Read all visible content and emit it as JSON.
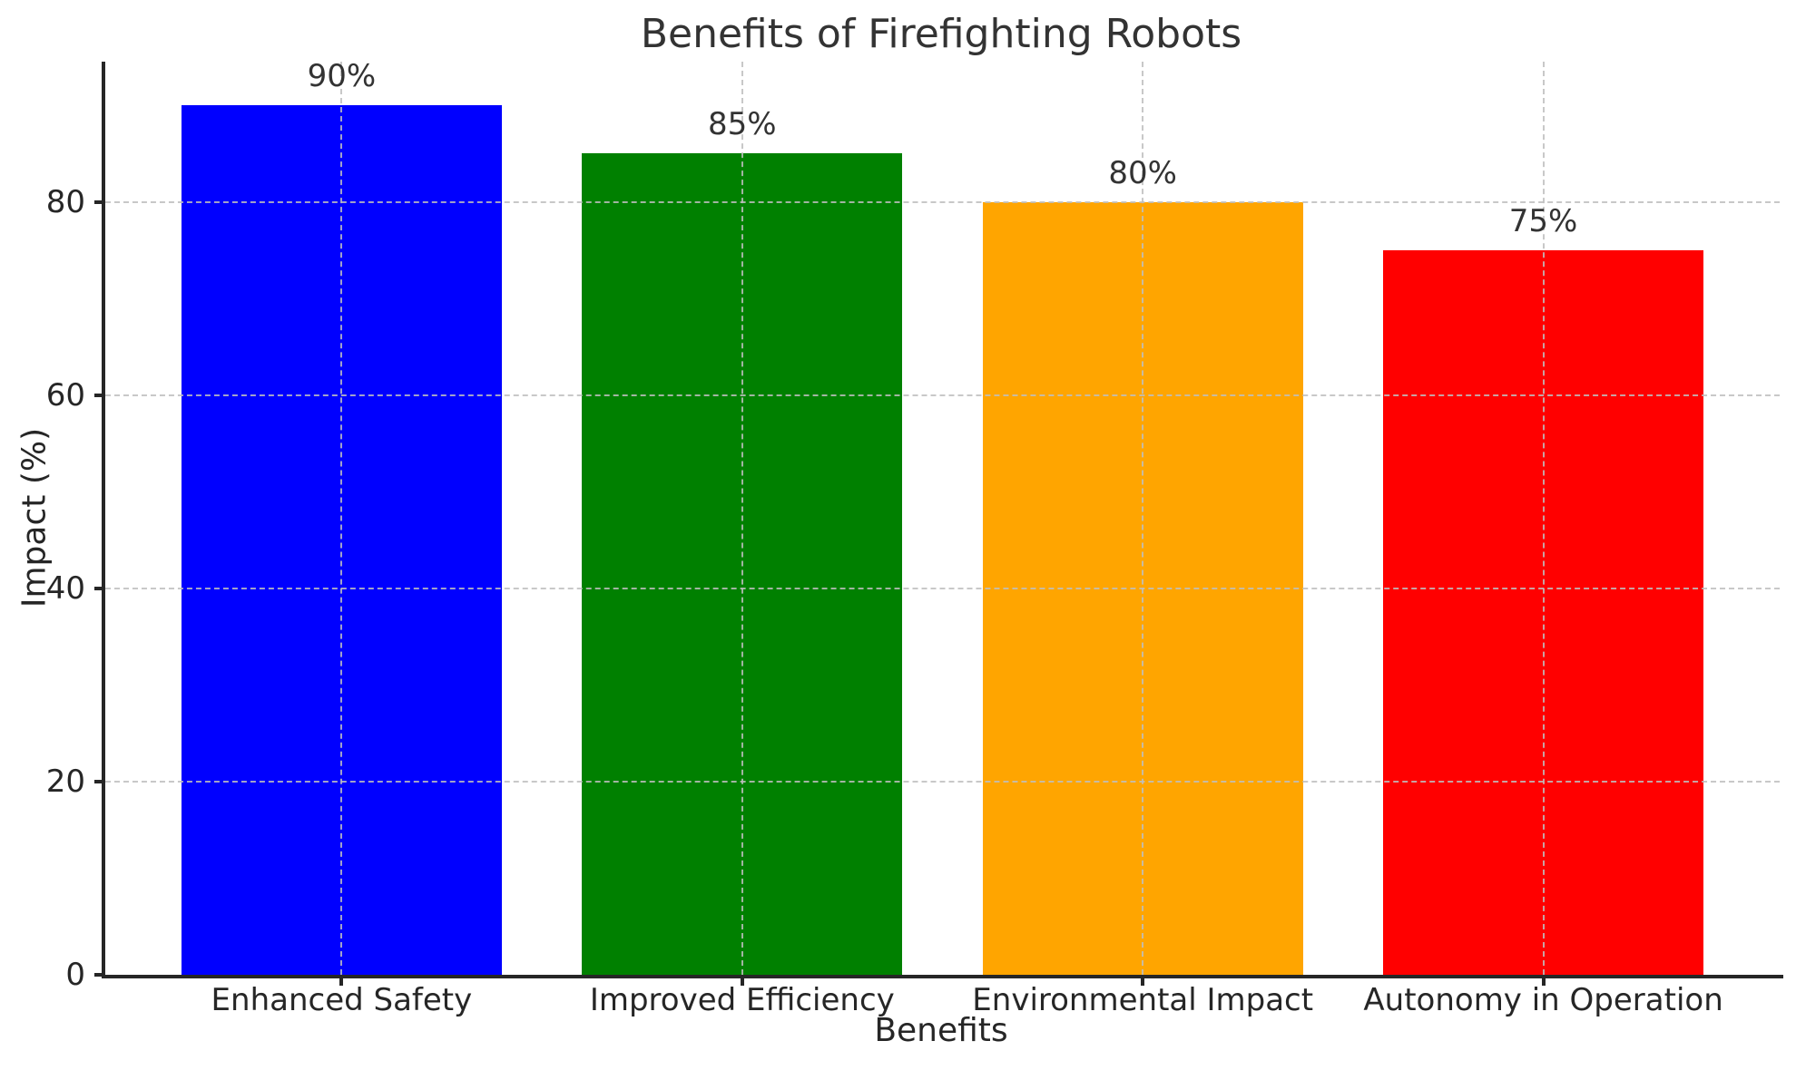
{
  "chart_data": {
    "type": "bar",
    "title": "Benefits of Firefighting Robots",
    "xlabel": "Benefits",
    "ylabel": "Impact (%)",
    "categories": [
      "Enhanced Safety",
      "Improved Efficiency",
      "Environmental Impact",
      "Autonomy in Operation"
    ],
    "values": [
      90,
      85,
      80,
      75
    ],
    "value_labels": [
      "90%",
      "85%",
      "80%",
      "75%"
    ],
    "bar_colors": [
      "#0000ff",
      "#008000",
      "#ffa500",
      "#ff0000"
    ],
    "yticks": [
      0,
      20,
      40,
      60,
      80
    ],
    "ytick_labels": [
      "0",
      "20",
      "40",
      "60",
      "80"
    ],
    "ylim": [
      0,
      94.5
    ],
    "xlim": [
      -0.59,
      3.59
    ],
    "bar_width_fraction": 0.8,
    "grid": {
      "visible": true,
      "style": "dashed",
      "color": "#bebebe",
      "axes": "both",
      "drawn_over_bars": true
    },
    "legend": "none",
    "background_color": "#ffffff",
    "text_color": "#262626",
    "spine_color": "#262626",
    "spines_visible": [
      "left",
      "bottom"
    ]
  }
}
